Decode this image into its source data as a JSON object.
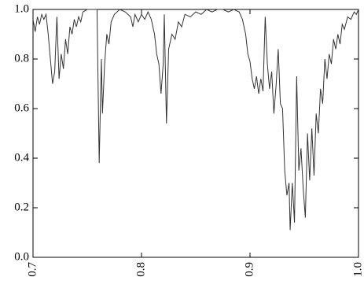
{
  "chart_data": {
    "type": "line",
    "x": [
      0.7,
      0.702,
      0.704,
      0.706,
      0.708,
      0.71,
      0.712,
      0.714,
      0.716,
      0.718,
      0.72,
      0.722,
      0.724,
      0.726,
      0.728,
      0.73,
      0.732,
      0.734,
      0.736,
      0.738,
      0.74,
      0.742,
      0.744,
      0.746,
      0.75,
      0.755,
      0.759,
      0.761,
      0.763,
      0.764,
      0.766,
      0.768,
      0.77,
      0.772,
      0.775,
      0.78,
      0.785,
      0.79,
      0.792,
      0.794,
      0.797,
      0.8,
      0.803,
      0.806,
      0.809,
      0.812,
      0.814,
      0.816,
      0.818,
      0.82,
      0.821,
      0.823,
      0.825,
      0.828,
      0.831,
      0.834,
      0.837,
      0.84,
      0.845,
      0.85,
      0.855,
      0.86,
      0.865,
      0.87,
      0.875,
      0.88,
      0.885,
      0.89,
      0.893,
      0.896,
      0.898,
      0.9,
      0.902,
      0.904,
      0.906,
      0.908,
      0.91,
      0.912,
      0.914,
      0.916,
      0.918,
      0.92,
      0.922,
      0.924,
      0.926,
      0.928,
      0.93,
      0.932,
      0.934,
      0.936,
      0.937,
      0.939,
      0.941,
      0.943,
      0.945,
      0.947,
      0.949,
      0.951,
      0.953,
      0.955,
      0.957,
      0.959,
      0.961,
      0.963,
      0.965,
      0.967,
      0.969,
      0.971,
      0.973,
      0.975,
      0.977,
      0.979,
      0.981,
      0.983,
      0.985,
      0.987,
      0.99,
      0.993,
      0.996,
      0.998,
      1.0
    ],
    "series": [
      {
        "color": "#333333",
        "values": [
          0.96,
          0.91,
          0.97,
          0.94,
          0.98,
          0.96,
          0.98,
          0.9,
          0.8,
          0.7,
          0.75,
          0.97,
          0.72,
          0.82,
          0.76,
          0.88,
          0.82,
          0.93,
          0.9,
          0.96,
          0.93,
          0.97,
          0.95,
          0.99,
          1.0,
          1.0,
          1.0,
          0.38,
          0.8,
          0.58,
          0.78,
          0.9,
          0.86,
          0.95,
          0.98,
          1.0,
          0.99,
          0.97,
          0.93,
          0.98,
          0.95,
          0.98,
          0.96,
          0.99,
          0.96,
          0.9,
          0.82,
          0.78,
          0.66,
          0.78,
          0.98,
          0.54,
          0.84,
          0.9,
          0.88,
          0.95,
          0.93,
          0.98,
          0.97,
          0.99,
          0.98,
          1.0,
          0.99,
          1.0,
          1.0,
          0.99,
          1.0,
          0.99,
          0.96,
          0.9,
          0.82,
          0.79,
          0.72,
          0.68,
          0.73,
          0.66,
          0.72,
          0.67,
          0.97,
          0.78,
          0.68,
          0.75,
          0.58,
          0.69,
          0.84,
          0.62,
          0.6,
          0.35,
          0.25,
          0.3,
          0.11,
          0.3,
          0.14,
          0.73,
          0.35,
          0.44,
          0.28,
          0.16,
          0.5,
          0.31,
          0.52,
          0.33,
          0.58,
          0.5,
          0.68,
          0.62,
          0.8,
          0.72,
          0.82,
          0.78,
          0.88,
          0.84,
          0.9,
          0.86,
          0.94,
          0.92,
          0.97,
          0.96,
          0.99,
          0.98,
          1.0
        ]
      }
    ],
    "xlim": [
      0.7,
      1.0
    ],
    "xticks": [
      0.7,
      0.8,
      0.9,
      {
        "value": 1.0,
        "label": "1.0"
      }
    ],
    "ylim": [
      0.0,
      1.0
    ],
    "yticks": [
      {
        "value": 0,
        "label": "0.0"
      },
      0.2,
      0.4,
      0.6,
      0.8,
      {
        "value": 1.0,
        "label": "1.0"
      }
    ]
  }
}
